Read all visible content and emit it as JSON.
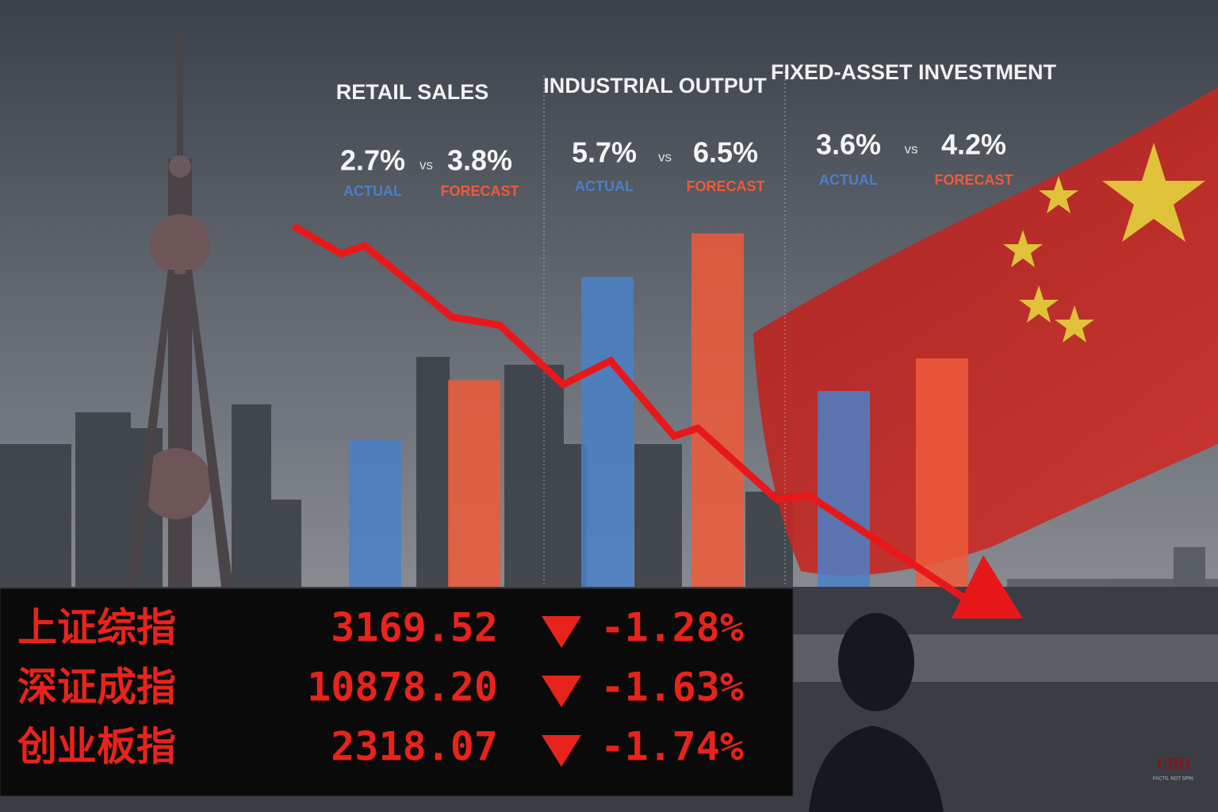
{
  "chart_data": {
    "type": "bar",
    "categories": [
      "RETAIL SALES",
      "INDUSTRIAL OUTPUT",
      "FIXED-ASSET INVESTMENT"
    ],
    "separator": "vs",
    "series": [
      {
        "name": "ACTUAL",
        "color": "#4a80c8",
        "values": [
          2.7,
          5.7,
          3.6
        ],
        "value_labels": [
          "2.7%",
          "5.7%",
          "3.6%"
        ]
      },
      {
        "name": "FORECAST",
        "color": "#ee5a3a",
        "values": [
          3.8,
          6.5,
          4.2
        ],
        "value_labels": [
          "3.8%",
          "6.5%",
          "4.2%"
        ]
      }
    ],
    "ylim": [
      0,
      7
    ]
  },
  "ticker": {
    "rows": [
      [
        "上证综指",
        "3169.52",
        "-1.28%"
      ],
      [
        "深证成指",
        "10878.20",
        "-1.63%"
      ],
      [
        "创业板指",
        "2318.07",
        "-1.74%"
      ]
    ]
  },
  "watermark": {
    "logo": "UBH",
    "tagline": "FACTS. NOT SPIN."
  }
}
